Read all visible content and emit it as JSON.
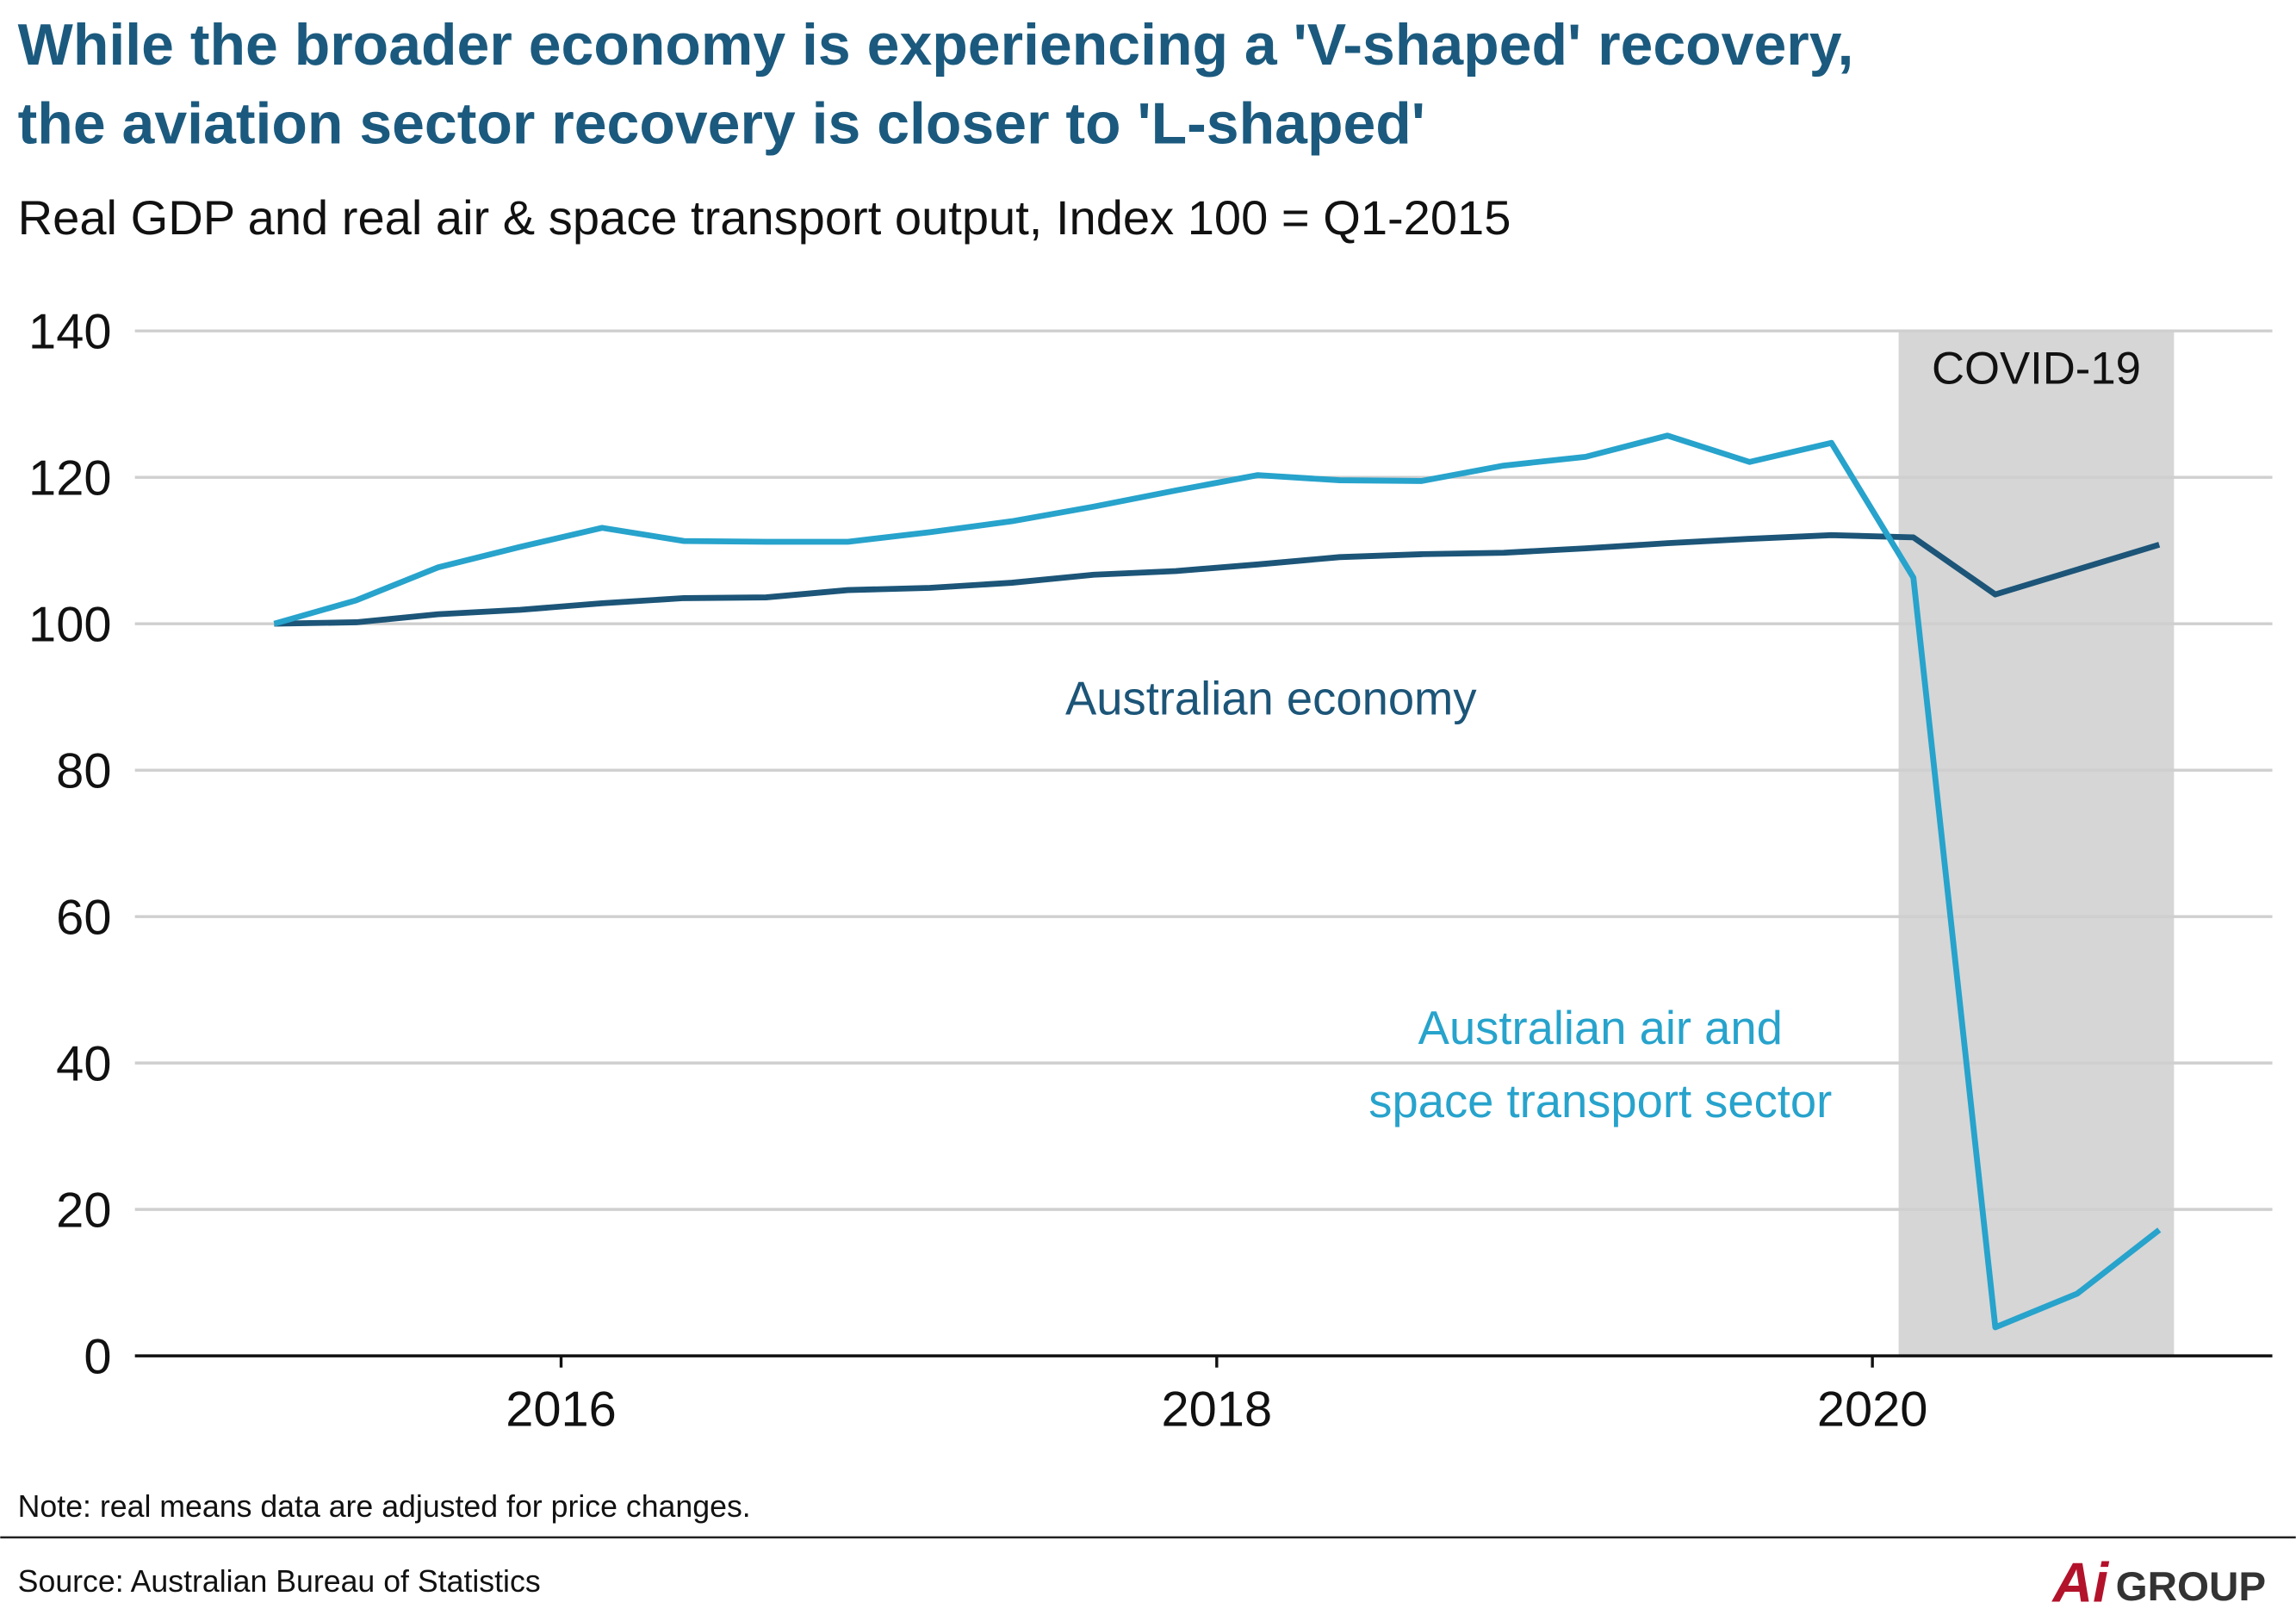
{
  "chart_data": {
    "type": "line",
    "title": [
      "While the broader economy is experiencing a 'V-shaped' recovery,",
      "the aviation sector recovery is closer to 'L-shaped'"
    ],
    "subtitle": "Real GDP and real air & space transport output, Index 100 = Q1-2015",
    "x": [
      2015.125,
      2015.375,
      2015.625,
      2015.875,
      2016.125,
      2016.375,
      2016.625,
      2016.875,
      2017.125,
      2017.375,
      2017.625,
      2017.875,
      2018.125,
      2018.375,
      2018.625,
      2018.875,
      2019.125,
      2019.375,
      2019.625,
      2019.875,
      2020.125,
      2020.375,
      2020.625,
      2020.875
    ],
    "series": [
      {
        "name": "Australian economy",
        "color": "#1c5578",
        "values": [
          100,
          100.2,
          101.3,
          101.9,
          102.8,
          103.5,
          103.6,
          104.6,
          104.9,
          105.6,
          106.7,
          107.2,
          108.1,
          109.1,
          109.5,
          109.7,
          110.3,
          111.0,
          111.6,
          112.1,
          111.8,
          104.0,
          107.4,
          110.8
        ]
      },
      {
        "name": "Australian air and space transport sector",
        "color": "#27a3cc",
        "values": [
          100,
          103.2,
          107.7,
          110.5,
          113.1,
          111.3,
          111.2,
          111.2,
          112.5,
          114.0,
          116.0,
          118.2,
          120.3,
          119.6,
          119.5,
          121.6,
          122.8,
          125.7,
          122.1,
          124.7,
          106.3,
          3.9,
          8.5,
          17.2
        ]
      }
    ],
    "annotations": [
      {
        "lines": [
          "Australian economy"
        ],
        "color": "#1c5578"
      },
      {
        "lines": [
          "Australian air and",
          "space transport sector"
        ],
        "color": "#27a3cc"
      }
    ],
    "shaded_region": {
      "label": "COVID-19",
      "xlim": [
        2020.08,
        2020.92
      ],
      "color": "#d6d6d6"
    },
    "xlim": [
      2014.7,
      2021.22
    ],
    "xticks": [
      2016,
      2018,
      2020
    ],
    "ylim": [
      0,
      140
    ],
    "yticks": [
      0,
      20,
      40,
      60,
      80,
      100,
      120,
      140
    ],
    "grid": true,
    "note": "Note: real means data are adjusted for price changes.",
    "source": "Source: Australian Bureau of Statistics",
    "logo": {
      "mark": "Ai",
      "text": "GROUP"
    }
  }
}
